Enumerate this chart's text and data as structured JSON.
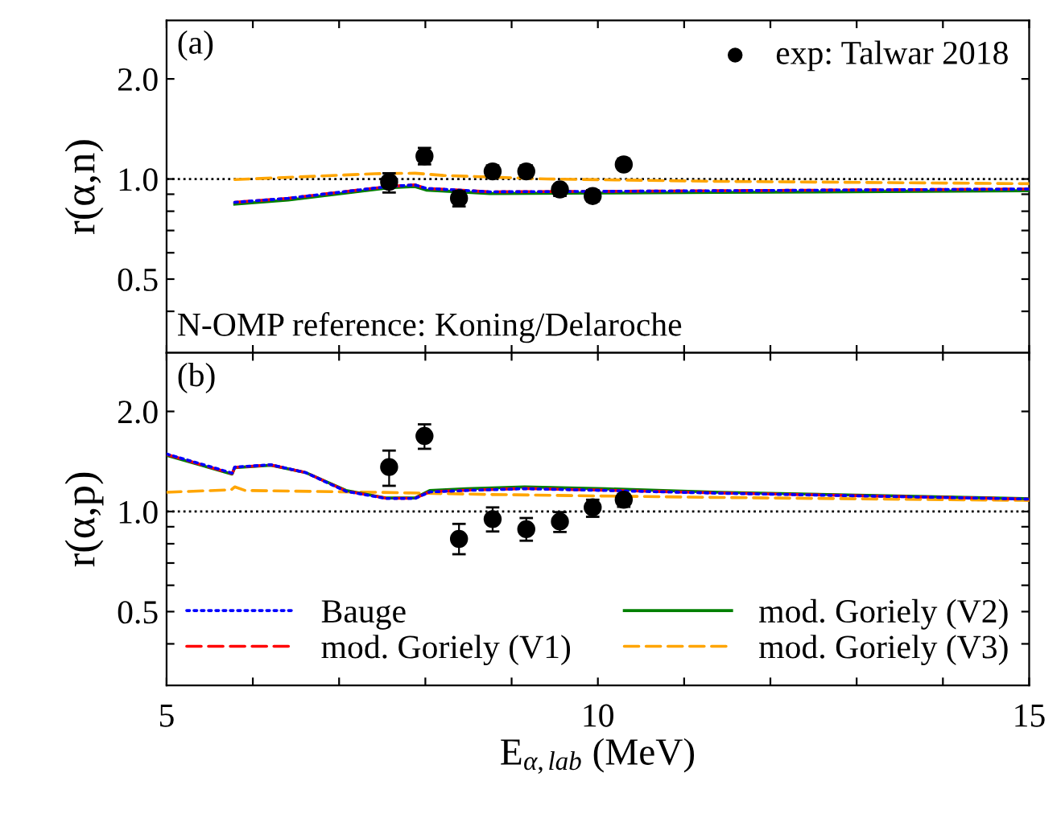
{
  "chart_data": [
    {
      "type": "line",
      "ylabel": "r(α,n)",
      "log": "y",
      "xlim": [
        5,
        15
      ],
      "ylim": [
        0.3,
        3.0
      ],
      "xticks": [
        5,
        {
          "value": 6,
          "label": null
        },
        {
          "value": 7,
          "label": null
        },
        {
          "value": 8,
          "label": null
        },
        {
          "value": 9,
          "label": null
        },
        10,
        {
          "value": 11,
          "label": null
        },
        {
          "value": 12,
          "label": null
        },
        {
          "value": 13,
          "label": null
        },
        {
          "value": 14,
          "label": null
        },
        15
      ],
      "yticks": [
        {
          "value": 0.4,
          "label": null
        },
        0.5,
        {
          "value": 0.6,
          "label": null
        },
        {
          "value": 0.7,
          "label": null
        },
        {
          "value": 0.8,
          "label": null
        },
        {
          "value": 0.9,
          "label": null
        },
        {
          "value": 1.0,
          "label": "1.0"
        },
        {
          "value": 2.0,
          "label": "2.0"
        }
      ],
      "tick_labels": "y",
      "legend": "top right",
      "annotations": [
        "(a)",
        "N-OMP reference: Koning/Delaroche"
      ],
      "ref_lines": [
        {
          "axis": "y",
          "value": 1.0,
          "color": "#000000",
          "line_style": "dotted"
        }
      ],
      "series": [
        {
          "name": "exp: Talwar 2018",
          "type": "scatter",
          "marker": "circle",
          "color": "#000000",
          "x": [
            7.58,
            7.99,
            8.39,
            8.78,
            9.17,
            9.56,
            9.94,
            10.3
          ],
          "values": [
            0.98,
            1.171,
            0.875,
            1.054,
            1.054,
            0.93,
            0.889,
            1.106
          ],
          "errors": [
            [
              0.911,
              1.041
            ],
            [
              1.106,
              1.24
            ],
            [
              0.827,
              0.918
            ],
            [
              1.012,
              1.098
            ],
            [
              1.012,
              1.098
            ],
            [
              0.889,
              0.964
            ],
            [
              0.855,
              0.926
            ],
            [
              1.067,
              1.152
            ]
          ]
        },
        {
          "color": "#0000ff",
          "line_style": "dotted",
          "x": [
            5.79,
            6.41,
            7.58,
            7.88,
            8.01,
            8.75,
            10.09,
            11.41,
            15
          ],
          "values": [
            0.851,
            0.875,
            0.95,
            0.96,
            0.937,
            0.915,
            0.918,
            0.922,
            0.933
          ]
        },
        {
          "color": "#ff0000",
          "line_style": "dashed",
          "x": [
            5.79,
            6.41,
            7.58,
            7.88,
            8.01,
            8.75,
            10.09,
            11.41,
            15
          ],
          "values": [
            0.851,
            0.875,
            0.95,
            0.96,
            0.937,
            0.915,
            0.918,
            0.922,
            0.933
          ]
        },
        {
          "color": "#008000",
          "line_style": "solid",
          "x": [
            5.79,
            6.41,
            7.58,
            7.88,
            8.01,
            8.75,
            10.09,
            11.41,
            15
          ],
          "values": [
            0.84,
            0.864,
            0.941,
            0.949,
            0.926,
            0.904,
            0.907,
            0.911,
            0.922
          ]
        },
        {
          "color": "#ffa500",
          "line_style": "dashed",
          "x": [
            5.79,
            7.41,
            7.88,
            8.21,
            9.41,
            11.41,
            15
          ],
          "values": [
            0.996,
            1.037,
            1.041,
            1.025,
            1.0,
            0.984,
            0.968
          ]
        }
      ]
    },
    {
      "type": "line",
      "xlabel": "E$_{α,lab}$ (MeV)",
      "ylabel": "r(α,p)",
      "log": "y",
      "xlim": [
        5,
        15
      ],
      "ylim": [
        0.3,
        3.0
      ],
      "xticks": [
        5,
        {
          "value": 6,
          "label": null
        },
        {
          "value": 7,
          "label": null
        },
        {
          "value": 8,
          "label": null
        },
        {
          "value": 9,
          "label": null
        },
        10,
        {
          "value": 11,
          "label": null
        },
        {
          "value": 12,
          "label": null
        },
        {
          "value": 13,
          "label": null
        },
        {
          "value": 14,
          "label": null
        },
        15
      ],
      "yticks": [
        {
          "value": 0.4,
          "label": null
        },
        0.5,
        {
          "value": 0.6,
          "label": null
        },
        {
          "value": 0.7,
          "label": null
        },
        {
          "value": 0.8,
          "label": null
        },
        {
          "value": 0.9,
          "label": null
        },
        {
          "value": 1.0,
          "label": "1.0"
        },
        {
          "value": 2.0,
          "label": "2.0"
        }
      ],
      "legend": "bottom",
      "annotations": [
        "(b)"
      ],
      "ref_lines": [
        {
          "axis": "y",
          "value": 1.0,
          "color": "#000000",
          "line_style": "dotted"
        }
      ],
      "series": [
        {
          "type": "scatter",
          "marker": "circle",
          "color": "#000000",
          "x": [
            7.58,
            7.99,
            8.39,
            8.78,
            9.17,
            9.56,
            9.94,
            10.3
          ],
          "values": [
            1.361,
            1.687,
            0.827,
            0.949,
            0.885,
            0.933,
            1.029,
            1.085
          ],
          "errors": [
            [
              1.195,
              1.525
            ],
            [
              1.544,
              1.829
            ],
            [
              0.744,
              0.918
            ],
            [
              0.871,
              1.029
            ],
            [
              0.817,
              0.956
            ],
            [
              0.868,
              0.996
            ],
            [
              0.964,
              1.085
            ],
            [
              1.033,
              1.129
            ]
          ]
        },
        {
          "name": "Bauge",
          "color": "#0000ff",
          "line_style": "dotted",
          "x": [
            5,
            5.76,
            5.79,
            6.21,
            6.61,
            7.08,
            7.55,
            7.88,
            8.05,
            8.48,
            9.15,
            10.08,
            11.41,
            15
          ],
          "values": [
            1.49,
            1.305,
            1.36,
            1.383,
            1.31,
            1.15,
            1.094,
            1.094,
            1.145,
            1.157,
            1.171,
            1.157,
            1.135,
            1.09
          ]
        },
        {
          "name": "mod. Goriely (V1)",
          "color": "#ff0000",
          "line_style": "dashed",
          "x": [
            5,
            5.76,
            5.79,
            6.21,
            6.61,
            7.08,
            7.55,
            7.88,
            8.05,
            8.48,
            9.15,
            10.08,
            11.41,
            15
          ],
          "values": [
            1.485,
            1.3,
            1.358,
            1.38,
            1.31,
            1.153,
            1.096,
            1.096,
            1.147,
            1.159,
            1.173,
            1.159,
            1.137,
            1.09
          ]
        },
        {
          "name": "mod. Goriely (V2)",
          "color": "#008000",
          "line_style": "solid",
          "x": [
            5,
            5.76,
            5.79,
            6.21,
            6.61,
            7.08,
            7.55,
            7.88,
            8.05,
            8.48,
            9.15,
            10.08,
            11.41,
            15
          ],
          "values": [
            1.476,
            1.296,
            1.355,
            1.378,
            1.31,
            1.157,
            1.098,
            1.098,
            1.157,
            1.171,
            1.186,
            1.171,
            1.143,
            1.093
          ]
        },
        {
          "name": "mod. Goriely (V3)",
          "color": "#ffa500",
          "line_style": "dashed",
          "x": [
            5,
            5.75,
            5.79,
            5.91,
            7.41,
            8.75,
            11.41,
            15
          ],
          "values": [
            1.143,
            1.162,
            1.186,
            1.157,
            1.143,
            1.125,
            1.102,
            1.08
          ]
        }
      ]
    }
  ]
}
